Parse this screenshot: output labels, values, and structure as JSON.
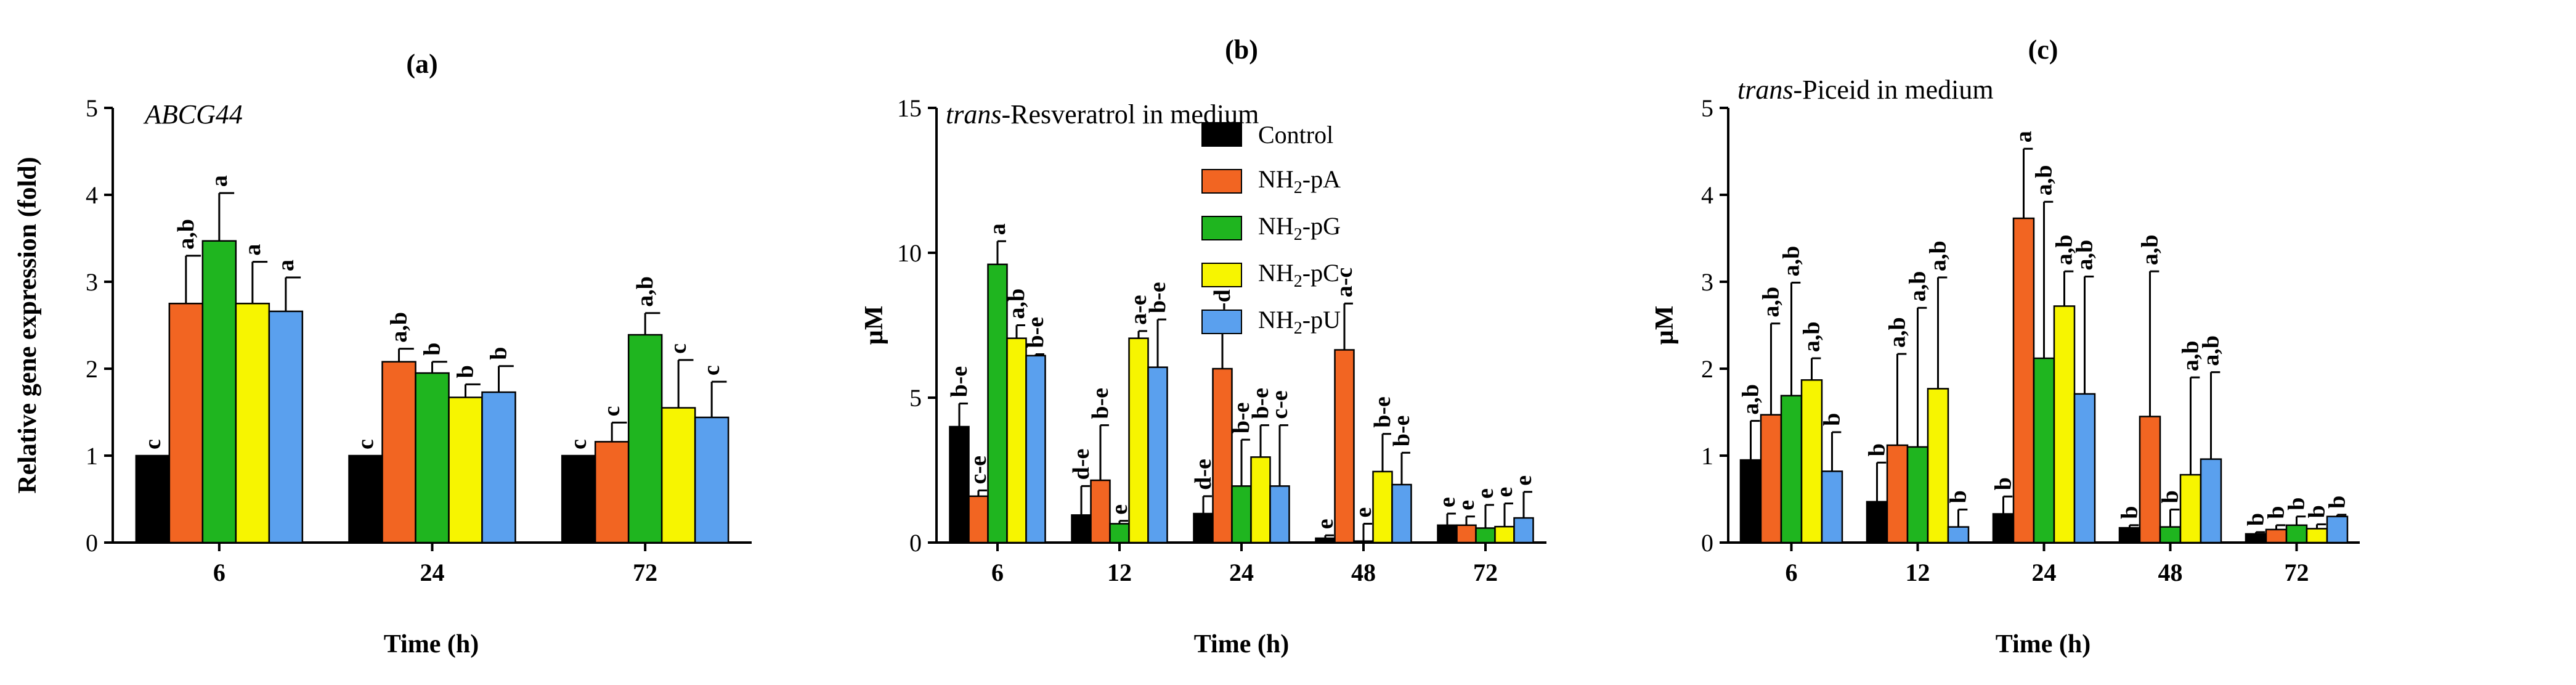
{
  "legend": [
    {
      "name": "Control",
      "label": "Control",
      "base": "",
      "sub": "",
      "suffix": "",
      "color": "#000000"
    },
    {
      "name": "NH2-pA",
      "label": "NH2-pA",
      "base": "NH",
      "sub": "2",
      "suffix": "-pA",
      "color": "#f26522"
    },
    {
      "name": "NH2-pG",
      "label": "NH2-pG",
      "base": "NH",
      "sub": "2",
      "suffix": "-pG",
      "color": "#1fb51f"
    },
    {
      "name": "NH2-pC",
      "label": "NH2-pC",
      "base": "NH",
      "sub": "2",
      "suffix": "-pC",
      "color": "#f7f500"
    },
    {
      "name": "NH2-pU",
      "label": "NH2-pU",
      "base": "NH",
      "sub": "2",
      "suffix": "-pU",
      "color": "#5aa0ee"
    }
  ],
  "chart_data": [
    {
      "type": "bar",
      "panel": "(a)",
      "title_italic": "ABCG44",
      "title_rest": "",
      "ylabel": "Relative gene expression (fold)",
      "xlabel": "Time (h)",
      "ylim": [
        0,
        5
      ],
      "yticks": [
        0,
        1,
        2,
        3,
        4,
        5
      ],
      "categories": [
        "6",
        "24",
        "72"
      ],
      "series": [
        {
          "name": "Control",
          "values": [
            1.0,
            1.0,
            1.0
          ],
          "errors": [
            0,
            0,
            0
          ],
          "letters": [
            "c",
            "c",
            "c"
          ]
        },
        {
          "name": "NH2-pA",
          "values": [
            2.75,
            2.08,
            1.16
          ],
          "errors": [
            0.55,
            0.15,
            0.22
          ],
          "letters": [
            "a,b",
            "a,b",
            "c"
          ]
        },
        {
          "name": "NH2-pG",
          "values": [
            3.47,
            1.95,
            2.39
          ],
          "errors": [
            0.55,
            0.13,
            0.25
          ],
          "letters": [
            "a",
            "b",
            "a,b"
          ]
        },
        {
          "name": "NH2-pC",
          "values": [
            2.75,
            1.67,
            1.55
          ],
          "errors": [
            0.48,
            0.15,
            0.55
          ],
          "letters": [
            "a",
            "b",
            "c"
          ]
        },
        {
          "name": "NH2-pU",
          "values": [
            2.66,
            1.73,
            1.44
          ],
          "errors": [
            0.39,
            0.3,
            0.41
          ],
          "letters": [
            "a",
            "b",
            "c"
          ]
        }
      ]
    },
    {
      "type": "bar",
      "panel": "(b)",
      "title_italic": "trans",
      "title_rest": "-Resveratrol in medium",
      "ylabel": "µM",
      "xlabel": "Time (h)",
      "ylim": [
        0,
        15
      ],
      "yticks": [
        0,
        5,
        10,
        15
      ],
      "categories": [
        "6",
        "12",
        "24",
        "48",
        "72"
      ],
      "series": [
        {
          "name": "Control",
          "values": [
            4.0,
            0.95,
            1.0,
            0.15,
            0.6
          ],
          "errors": [
            0.8,
            1.0,
            0.6,
            0.1,
            0.4
          ],
          "letters": [
            "b-e",
            "d-e",
            "d-e",
            "e",
            "e"
          ]
        },
        {
          "name": "NH2-pA",
          "values": [
            1.6,
            2.15,
            6.0,
            6.65,
            0.6
          ],
          "errors": [
            0.2,
            1.9,
            1.4,
            1.6,
            0.3
          ],
          "letters": [
            "c-e",
            "b-e",
            "a-d",
            "a-c",
            "e"
          ]
        },
        {
          "name": "NH2-pG",
          "values": [
            9.6,
            0.65,
            1.95,
            0.05,
            0.5
          ],
          "errors": [
            0.8,
            0.1,
            1.6,
            0.6,
            0.8
          ],
          "letters": [
            "a",
            "e",
            "b-e",
            "e",
            "e"
          ]
        },
        {
          "name": "NH2-pC",
          "values": [
            7.05,
            7.05,
            2.95,
            2.45,
            0.55
          ],
          "errors": [
            0.45,
            0.25,
            1.1,
            1.3,
            0.8
          ],
          "letters": [
            "a,b",
            "a-e",
            "b-e",
            "b-e",
            "e"
          ]
        },
        {
          "name": "NH2-pU",
          "values": [
            6.45,
            6.05,
            1.95,
            2.0,
            0.85
          ],
          "errors": [
            0.05,
            1.65,
            2.1,
            1.1,
            0.9
          ],
          "letters": [
            "b-e",
            "b-e",
            "c-e",
            "b-e",
            "e"
          ]
        }
      ]
    },
    {
      "type": "bar",
      "panel": "(c)",
      "title_italic": "trans",
      "title_rest": "-Piceid in medium",
      "ylabel": "µM",
      "xlabel": "Time (h)",
      "ylim": [
        0,
        5
      ],
      "yticks": [
        0,
        1,
        2,
        3,
        4,
        5
      ],
      "categories": [
        "6",
        "12",
        "24",
        "48",
        "72"
      ],
      "series": [
        {
          "name": "Control",
          "values": [
            0.95,
            0.47,
            0.33,
            0.17,
            0.1
          ],
          "errors": [
            0.45,
            0.45,
            0.2,
            0.03,
            0.02
          ],
          "letters": [
            "a,b",
            "b",
            "b",
            "b",
            "b"
          ]
        },
        {
          "name": "NH2-pA",
          "values": [
            1.47,
            1.12,
            3.73,
            1.45,
            0.15
          ],
          "errors": [
            1.05,
            1.05,
            0.8,
            1.67,
            0.05
          ],
          "letters": [
            "a,b",
            "a,b",
            "a",
            "a,b",
            "b"
          ]
        },
        {
          "name": "NH2-pG",
          "values": [
            1.69,
            1.1,
            2.12,
            0.18,
            0.2
          ],
          "errors": [
            1.3,
            1.6,
            1.8,
            0.2,
            0.1
          ],
          "letters": [
            "a,b",
            "a,b",
            "a,b",
            "b",
            "b"
          ]
        },
        {
          "name": "NH2-pC",
          "values": [
            1.87,
            1.77,
            2.72,
            0.78,
            0.16
          ],
          "errors": [
            0.25,
            1.28,
            0.4,
            1.12,
            0.05
          ],
          "letters": [
            "a,b",
            "a,b",
            "a,b",
            "a,b",
            "b"
          ]
        },
        {
          "name": "NH2-pU",
          "values": [
            0.82,
            0.18,
            1.71,
            0.96,
            0.3
          ],
          "errors": [
            0.45,
            0.2,
            1.35,
            1.0,
            0.02
          ],
          "letters": [
            "b",
            "b",
            "a,b",
            "a,b",
            "b"
          ]
        }
      ]
    }
  ]
}
